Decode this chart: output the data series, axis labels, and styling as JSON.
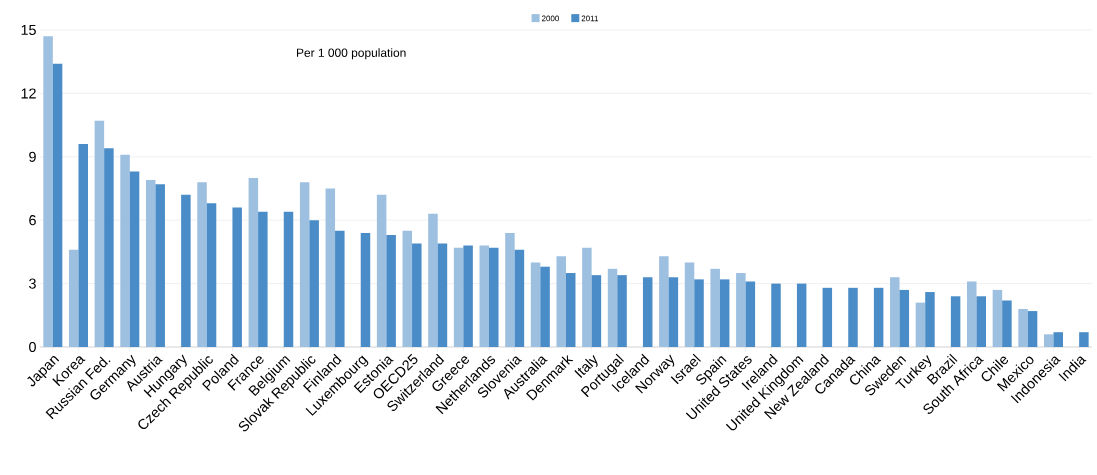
{
  "chart_data": {
    "type": "bar",
    "categories": [
      "Japan",
      "Korea",
      "Russian Fed.",
      "Germany",
      "Austria",
      "Hungary",
      "Czech Republic",
      "Poland",
      "France",
      "Belgium",
      "Slovak Republic",
      "Finland",
      "Luxembourg",
      "Estonia",
      "OECD25",
      "Switzerland",
      "Greece",
      "Netherlands",
      "Slovenia",
      "Australia",
      "Denmark",
      "Italy",
      "Portugal",
      "Iceland",
      "Norway",
      "Israel",
      "Spain",
      "United States",
      "Ireland",
      "United Kingdom",
      "New Zealand",
      "Canada",
      "China",
      "Sweden",
      "Turkey",
      "Brazil",
      "South Africa",
      "Chile",
      "Mexico",
      "Indonesia",
      "India"
    ],
    "series": [
      {
        "name": "2000",
        "color": "#9dbfe0",
        "values": [
          14.7,
          4.6,
          10.7,
          9.1,
          7.9,
          null,
          7.8,
          null,
          8.0,
          null,
          7.8,
          7.5,
          null,
          7.2,
          5.5,
          6.3,
          4.7,
          4.8,
          5.4,
          4.0,
          4.3,
          4.7,
          3.7,
          null,
          4.3,
          4.0,
          3.7,
          3.5,
          null,
          null,
          null,
          null,
          null,
          3.3,
          2.1,
          null,
          3.1,
          2.7,
          1.8,
          0.6,
          null
        ]
      },
      {
        "name": "2011",
        "color": "#4a8cc7",
        "values": [
          13.4,
          9.6,
          9.4,
          8.3,
          7.7,
          7.2,
          6.8,
          6.6,
          6.4,
          6.4,
          6.0,
          5.5,
          5.4,
          5.3,
          4.9,
          4.9,
          4.8,
          4.7,
          4.6,
          3.8,
          3.5,
          3.4,
          3.4,
          3.3,
          3.3,
          3.2,
          3.2,
          3.1,
          3.0,
          3.0,
          2.8,
          2.8,
          2.8,
          2.7,
          2.6,
          2.4,
          2.4,
          2.2,
          1.7,
          0.7,
          0.7
        ]
      }
    ],
    "ylim": [
      0,
      15
    ],
    "yticks": [
      0,
      3,
      6,
      9,
      12,
      15
    ],
    "grid": "y",
    "legend": "top",
    "annotations": [
      "Per 1 000 population"
    ]
  }
}
